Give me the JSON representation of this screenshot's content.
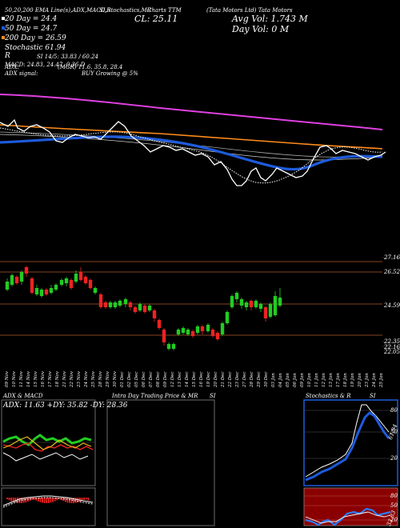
{
  "header": {
    "line1": "50,20,200 EMA Line(s),ADX,MACD,R",
    "line1b": "SI,Stochastics,MR",
    "line1c": "(Tata Motors Ltd) Tata Motors",
    "charts_ttm": "Charts TTM",
    "line2_left": "20 Day = 24.4",
    "cl": "CL: 25.11",
    "avg_vol": "Avg Vol: 1.743  M",
    "line3_left": "50 Day = 24.7",
    "day_vol": "Day Vol: 0  M",
    "line4_left": "200 Day = 26.59",
    "line5_left": "Stochastic 61.94",
    "r_line": "R",
    "si_line": "SI 14/5: 33.83 / 60.24",
    "macd_line": "MACD: 24.83, 24.47, 0.36  D",
    "adx_line": "ADX:",
    "mgr_line": "(MGR) 11.6, 35.8, 28.4",
    "adx_signal": "ADX  signal:",
    "buy_signal": "BUY Growing @ 5%"
  },
  "price_labels": {
    "p1": "27.16",
    "p2": "26.52",
    "p3": "24.59",
    "p4": "22.35",
    "p5": "22.16",
    "p6": "22.05"
  },
  "dates": [
    "09 Nov",
    "10 Nov",
    "11 Nov",
    "14 Nov",
    "15 Nov",
    "16 Nov",
    "17 Nov",
    "18 Nov",
    "21 Nov",
    "22 Nov",
    "23 Nov",
    "24 Nov",
    "25 Nov",
    "28 Nov",
    "29 Nov",
    "30 Nov",
    "01 Dec",
    "02 Dec",
    "05 Dec",
    "06 Dec",
    "07 Dec",
    "08 Dec",
    "09 Dec",
    "12 Dec",
    "13 Dec",
    "14 Dec",
    "15 Dec",
    "16 Dec",
    "19 Dec",
    "20 Dec",
    "21 Dec",
    "22 Dec",
    "23 Dec",
    "27 Dec",
    "28 Dec",
    "29 Dec",
    "30 Dec",
    "03 Jan",
    "04 Jan",
    "05 Jan",
    "06 Jan",
    "09 Jan",
    "10 Jan",
    "11 Jan",
    "12 Jan",
    "13 Jan",
    "17 Jan",
    "18 Jan",
    "19 Jan",
    "20 Jan",
    "23 Jan",
    "24 Jan",
    "25 Jan"
  ],
  "panels": {
    "adx_title": "ADX  & MACD",
    "adx_values": "ADX: 11.63  +DY: 35.82  -DY: 28.36",
    "intra_title": "Intra  Day Trading Price  & MR",
    "intra_si": "SI",
    "stoch_title": "Stochastics & R",
    "stoch_si": "SI",
    "stoch_ticks": [
      "80",
      "50",
      "20"
    ],
    "stoch_value": "61.94",
    "rsi_ticks": [
      "80",
      "50",
      "20"
    ],
    "rsi_value": "33.83"
  },
  "colors": {
    "ema20": "#ffffff",
    "ema50": "#1e5bdc",
    "ema200": "#ff8c1a",
    "magenta": "#e040e0",
    "up": "#22cc22",
    "down": "#ee2222",
    "guide": "#b05a2a"
  }
}
